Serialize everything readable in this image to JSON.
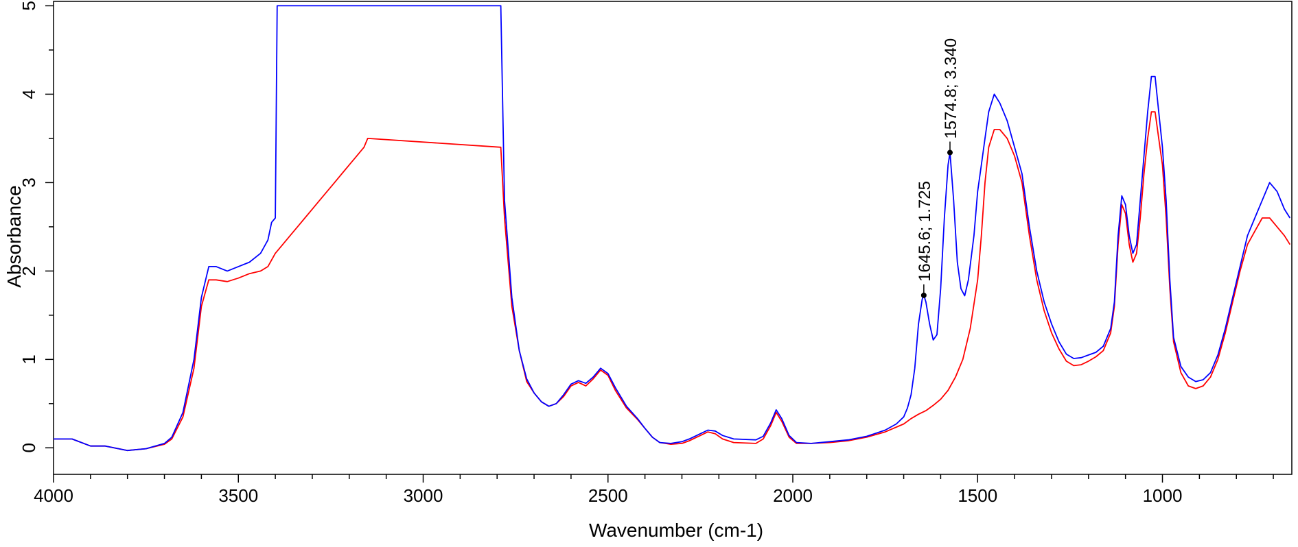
{
  "chart_data": {
    "type": "line",
    "title": "",
    "xlabel": "Wavenumber (cm-1)",
    "ylabel": "Absorbance",
    "xlim": [
      4000,
      650
    ],
    "ylim": [
      -0.3,
      5.05
    ],
    "x_reversed": true,
    "grid": false,
    "x_ticks": [
      4000,
      3500,
      3000,
      2500,
      2000,
      1500,
      1000
    ],
    "x_tick_labels": [
      "4000",
      "3500",
      "3000",
      "2500",
      "2000",
      "1500",
      "1000"
    ],
    "y_ticks": [
      0,
      1,
      2,
      3,
      4,
      5
    ],
    "y_tick_labels": [
      "0",
      "1",
      "2",
      "3",
      "4",
      "5"
    ],
    "series": [
      {
        "color": "#ff0000",
        "points": [
          [
            4000,
            0.1
          ],
          [
            3950,
            0.1
          ],
          [
            3900,
            0.02
          ],
          [
            3860,
            0.02
          ],
          [
            3800,
            -0.03
          ],
          [
            3750,
            -0.01
          ],
          [
            3700,
            0.04
          ],
          [
            3680,
            0.1
          ],
          [
            3650,
            0.35
          ],
          [
            3620,
            0.9
          ],
          [
            3600,
            1.6
          ],
          [
            3580,
            1.9
          ],
          [
            3560,
            1.9
          ],
          [
            3530,
            1.88
          ],
          [
            3500,
            1.92
          ],
          [
            3470,
            1.97
          ],
          [
            3440,
            2.0
          ],
          [
            3420,
            2.05
          ],
          [
            3400,
            2.2
          ],
          [
            3380,
            2.3
          ],
          [
            3360,
            2.4
          ],
          [
            3340,
            2.5
          ],
          [
            3320,
            2.6
          ],
          [
            3300,
            2.7
          ],
          [
            3280,
            2.8
          ],
          [
            3260,
            2.9
          ],
          [
            3240,
            3.0
          ],
          [
            3220,
            3.1
          ],
          [
            3200,
            3.2
          ],
          [
            3180,
            3.3
          ],
          [
            3160,
            3.4
          ],
          [
            3150,
            3.5
          ],
          [
            2790,
            3.4
          ],
          [
            2780,
            2.6
          ],
          [
            2760,
            1.6
          ],
          [
            2740,
            1.1
          ],
          [
            2720,
            0.75
          ],
          [
            2700,
            0.62
          ],
          [
            2680,
            0.52
          ],
          [
            2660,
            0.47
          ],
          [
            2640,
            0.5
          ],
          [
            2620,
            0.58
          ],
          [
            2600,
            0.7
          ],
          [
            2580,
            0.74
          ],
          [
            2560,
            0.7
          ],
          [
            2540,
            0.78
          ],
          [
            2520,
            0.88
          ],
          [
            2500,
            0.82
          ],
          [
            2480,
            0.65
          ],
          [
            2450,
            0.45
          ],
          [
            2420,
            0.32
          ],
          [
            2400,
            0.22
          ],
          [
            2380,
            0.12
          ],
          [
            2360,
            0.06
          ],
          [
            2330,
            0.04
          ],
          [
            2300,
            0.05
          ],
          [
            2280,
            0.08
          ],
          [
            2250,
            0.14
          ],
          [
            2230,
            0.18
          ],
          [
            2210,
            0.16
          ],
          [
            2190,
            0.1
          ],
          [
            2160,
            0.06
          ],
          [
            2100,
            0.05
          ],
          [
            2080,
            0.1
          ],
          [
            2060,
            0.25
          ],
          [
            2045,
            0.4
          ],
          [
            2030,
            0.3
          ],
          [
            2010,
            0.12
          ],
          [
            1990,
            0.05
          ],
          [
            1950,
            0.05
          ],
          [
            1900,
            0.06
          ],
          [
            1850,
            0.08
          ],
          [
            1800,
            0.12
          ],
          [
            1750,
            0.18
          ],
          [
            1700,
            0.27
          ],
          [
            1680,
            0.33
          ],
          [
            1660,
            0.38
          ],
          [
            1640,
            0.42
          ],
          [
            1620,
            0.48
          ],
          [
            1600,
            0.55
          ],
          [
            1580,
            0.65
          ],
          [
            1560,
            0.8
          ],
          [
            1540,
            1.0
          ],
          [
            1520,
            1.35
          ],
          [
            1500,
            1.9
          ],
          [
            1490,
            2.4
          ],
          [
            1480,
            3.0
          ],
          [
            1470,
            3.4
          ],
          [
            1455,
            3.6
          ],
          [
            1440,
            3.6
          ],
          [
            1420,
            3.5
          ],
          [
            1400,
            3.3
          ],
          [
            1380,
            3.0
          ],
          [
            1360,
            2.4
          ],
          [
            1340,
            1.9
          ],
          [
            1320,
            1.55
          ],
          [
            1300,
            1.3
          ],
          [
            1280,
            1.12
          ],
          [
            1260,
            0.98
          ],
          [
            1240,
            0.93
          ],
          [
            1220,
            0.94
          ],
          [
            1200,
            0.98
          ],
          [
            1180,
            1.03
          ],
          [
            1160,
            1.1
          ],
          [
            1140,
            1.3
          ],
          [
            1130,
            1.6
          ],
          [
            1120,
            2.3
          ],
          [
            1110,
            2.75
          ],
          [
            1100,
            2.65
          ],
          [
            1090,
            2.3
          ],
          [
            1080,
            2.1
          ],
          [
            1070,
            2.2
          ],
          [
            1060,
            2.6
          ],
          [
            1050,
            3.1
          ],
          [
            1040,
            3.5
          ],
          [
            1030,
            3.8
          ],
          [
            1020,
            3.8
          ],
          [
            1010,
            3.5
          ],
          [
            1000,
            3.2
          ],
          [
            990,
            2.6
          ],
          [
            980,
            1.8
          ],
          [
            970,
            1.2
          ],
          [
            950,
            0.85
          ],
          [
            930,
            0.7
          ],
          [
            910,
            0.67
          ],
          [
            890,
            0.7
          ],
          [
            870,
            0.8
          ],
          [
            850,
            1.0
          ],
          [
            830,
            1.3
          ],
          [
            810,
            1.65
          ],
          [
            790,
            2.0
          ],
          [
            770,
            2.3
          ],
          [
            750,
            2.45
          ],
          [
            730,
            2.6
          ],
          [
            710,
            2.6
          ],
          [
            690,
            2.5
          ],
          [
            670,
            2.4
          ],
          [
            655,
            2.3
          ]
        ]
      },
      {
        "color": "#0000ff",
        "points": [
          [
            4000,
            0.1
          ],
          [
            3950,
            0.1
          ],
          [
            3900,
            0.02
          ],
          [
            3860,
            0.02
          ],
          [
            3800,
            -0.03
          ],
          [
            3750,
            -0.01
          ],
          [
            3700,
            0.05
          ],
          [
            3680,
            0.12
          ],
          [
            3650,
            0.4
          ],
          [
            3620,
            1.0
          ],
          [
            3600,
            1.7
          ],
          [
            3580,
            2.05
          ],
          [
            3560,
            2.05
          ],
          [
            3530,
            2.0
          ],
          [
            3500,
            2.05
          ],
          [
            3470,
            2.1
          ],
          [
            3440,
            2.2
          ],
          [
            3420,
            2.35
          ],
          [
            3410,
            2.55
          ],
          [
            3400,
            2.6
          ],
          [
            3395,
            5.0
          ],
          [
            2790,
            5.0
          ],
          [
            2780,
            2.8
          ],
          [
            2760,
            1.7
          ],
          [
            2740,
            1.1
          ],
          [
            2720,
            0.78
          ],
          [
            2700,
            0.62
          ],
          [
            2680,
            0.52
          ],
          [
            2660,
            0.47
          ],
          [
            2640,
            0.5
          ],
          [
            2620,
            0.6
          ],
          [
            2600,
            0.72
          ],
          [
            2580,
            0.76
          ],
          [
            2560,
            0.73
          ],
          [
            2540,
            0.8
          ],
          [
            2520,
            0.9
          ],
          [
            2500,
            0.84
          ],
          [
            2480,
            0.68
          ],
          [
            2450,
            0.47
          ],
          [
            2420,
            0.33
          ],
          [
            2400,
            0.22
          ],
          [
            2380,
            0.12
          ],
          [
            2360,
            0.06
          ],
          [
            2330,
            0.05
          ],
          [
            2300,
            0.07
          ],
          [
            2280,
            0.1
          ],
          [
            2250,
            0.16
          ],
          [
            2230,
            0.2
          ],
          [
            2210,
            0.19
          ],
          [
            2190,
            0.14
          ],
          [
            2160,
            0.1
          ],
          [
            2100,
            0.09
          ],
          [
            2080,
            0.13
          ],
          [
            2060,
            0.28
          ],
          [
            2045,
            0.43
          ],
          [
            2030,
            0.33
          ],
          [
            2010,
            0.14
          ],
          [
            1990,
            0.06
          ],
          [
            1950,
            0.05
          ],
          [
            1900,
            0.07
          ],
          [
            1850,
            0.09
          ],
          [
            1800,
            0.13
          ],
          [
            1750,
            0.2
          ],
          [
            1720,
            0.27
          ],
          [
            1700,
            0.35
          ],
          [
            1690,
            0.45
          ],
          [
            1680,
            0.6
          ],
          [
            1670,
            0.9
          ],
          [
            1660,
            1.4
          ],
          [
            1650,
            1.68
          ],
          [
            1645.6,
            1.725
          ],
          [
            1640,
            1.65
          ],
          [
            1630,
            1.4
          ],
          [
            1620,
            1.22
          ],
          [
            1610,
            1.28
          ],
          [
            1600,
            1.8
          ],
          [
            1590,
            2.6
          ],
          [
            1580,
            3.2
          ],
          [
            1574.8,
            3.34
          ],
          [
            1565,
            2.8
          ],
          [
            1555,
            2.1
          ],
          [
            1545,
            1.8
          ],
          [
            1535,
            1.72
          ],
          [
            1525,
            1.9
          ],
          [
            1510,
            2.4
          ],
          [
            1500,
            2.9
          ],
          [
            1490,
            3.2
          ],
          [
            1480,
            3.5
          ],
          [
            1470,
            3.8
          ],
          [
            1455,
            4.0
          ],
          [
            1440,
            3.9
          ],
          [
            1420,
            3.7
          ],
          [
            1400,
            3.4
          ],
          [
            1380,
            3.1
          ],
          [
            1360,
            2.5
          ],
          [
            1340,
            2.0
          ],
          [
            1320,
            1.65
          ],
          [
            1300,
            1.4
          ],
          [
            1280,
            1.2
          ],
          [
            1260,
            1.06
          ],
          [
            1240,
            1.01
          ],
          [
            1220,
            1.02
          ],
          [
            1200,
            1.05
          ],
          [
            1180,
            1.08
          ],
          [
            1160,
            1.15
          ],
          [
            1140,
            1.35
          ],
          [
            1130,
            1.65
          ],
          [
            1120,
            2.4
          ],
          [
            1110,
            2.85
          ],
          [
            1100,
            2.75
          ],
          [
            1090,
            2.4
          ],
          [
            1080,
            2.2
          ],
          [
            1070,
            2.3
          ],
          [
            1060,
            2.8
          ],
          [
            1050,
            3.3
          ],
          [
            1040,
            3.8
          ],
          [
            1030,
            4.2
          ],
          [
            1020,
            4.2
          ],
          [
            1010,
            3.8
          ],
          [
            1000,
            3.4
          ],
          [
            990,
            2.8
          ],
          [
            980,
            1.9
          ],
          [
            970,
            1.25
          ],
          [
            950,
            0.92
          ],
          [
            930,
            0.8
          ],
          [
            910,
            0.75
          ],
          [
            890,
            0.77
          ],
          [
            870,
            0.85
          ],
          [
            850,
            1.05
          ],
          [
            830,
            1.35
          ],
          [
            810,
            1.7
          ],
          [
            790,
            2.05
          ],
          [
            770,
            2.4
          ],
          [
            750,
            2.6
          ],
          [
            730,
            2.8
          ],
          [
            710,
            3.0
          ],
          [
            690,
            2.9
          ],
          [
            670,
            2.7
          ],
          [
            655,
            2.6
          ]
        ]
      }
    ],
    "annotations": [
      {
        "x": 1645.6,
        "y": 1.725,
        "label": "1645.6; 1.725"
      },
      {
        "x": 1574.8,
        "y": 3.34,
        "label": "1574.8; 3.340"
      }
    ]
  }
}
